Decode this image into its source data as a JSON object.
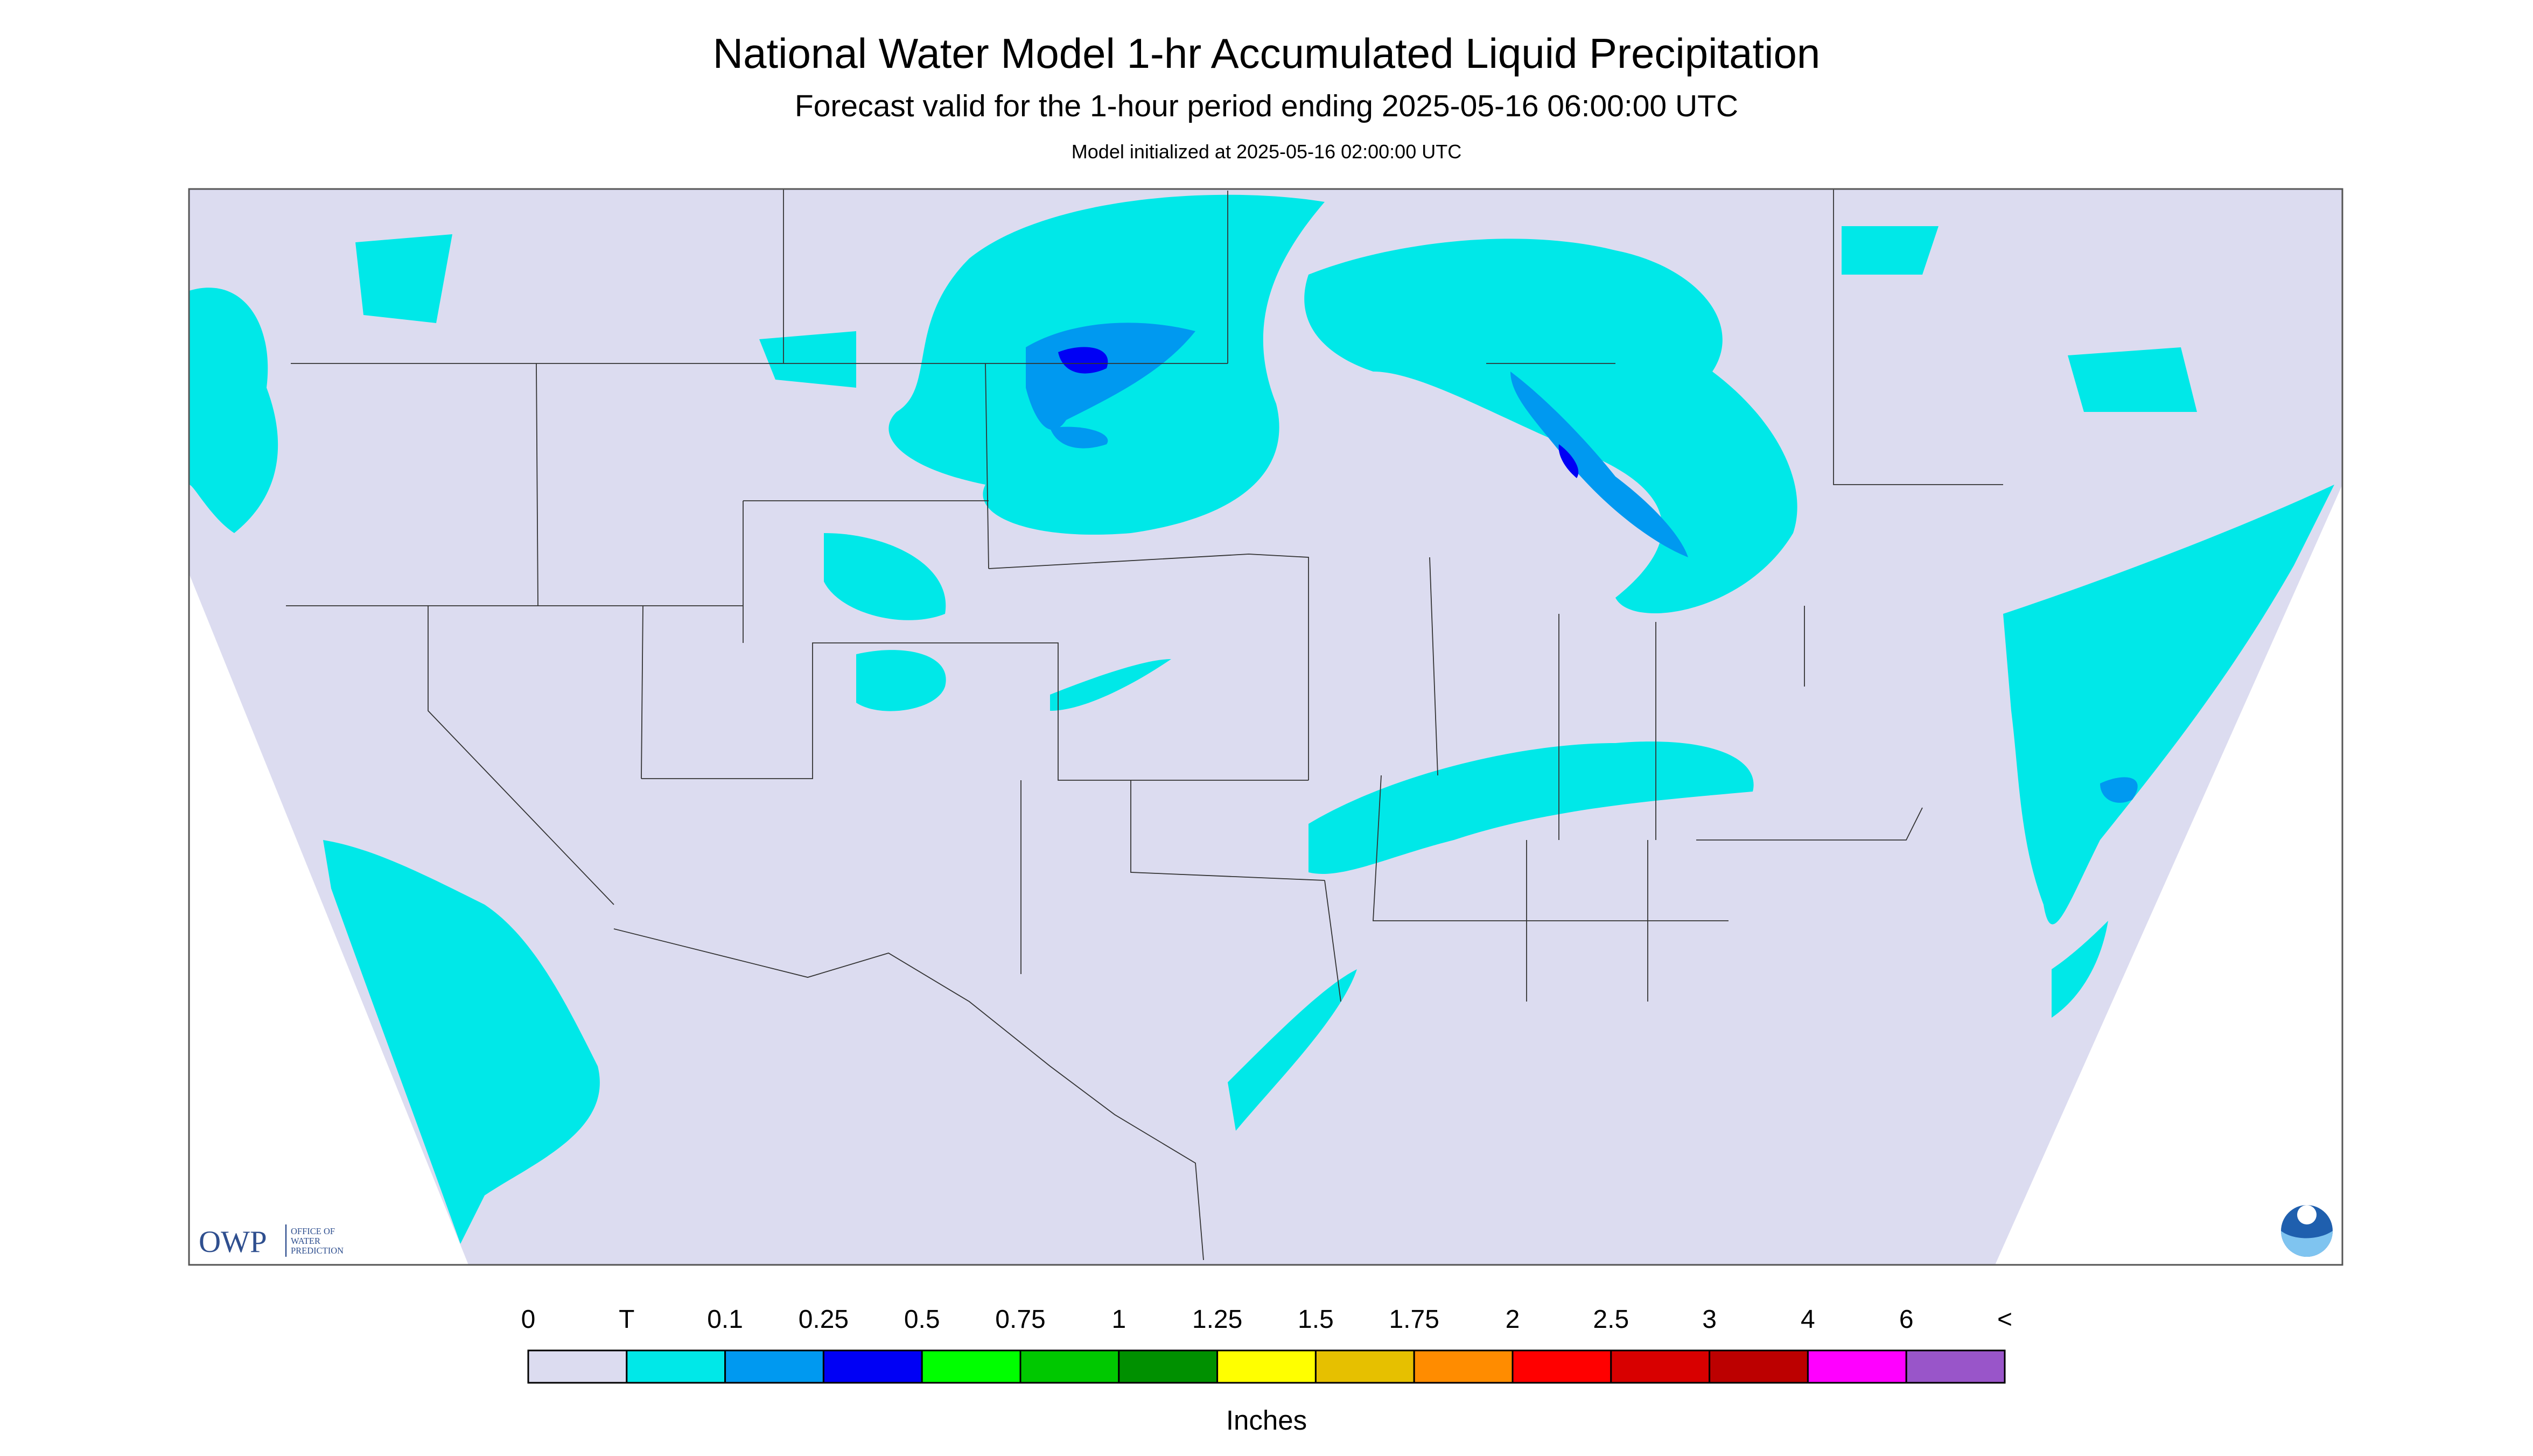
{
  "header": {
    "title": "National Water Model 1-hr Accumulated Liquid Precipitation",
    "subtitle": "Forecast valid for the 1-hour period ending 2025-05-16 06:00:00 UTC",
    "init": "Model initialized at 2025-05-16 02:00:00 UTC"
  },
  "logo": {
    "acronym": "OWP",
    "line1": "OFFICE OF",
    "line2": "WATER",
    "line3": "PREDICTION"
  },
  "legend": {
    "labels": [
      "0",
      "T",
      "0.1",
      "0.25",
      "0.5",
      "0.75",
      "1",
      "1.25",
      "1.5",
      "1.75",
      "2",
      "2.5",
      "3",
      "4",
      "6",
      "<"
    ],
    "colors": [
      "#dcdcf0",
      "#00e8e8",
      "#0099f0",
      "#0000f5",
      "#00ff00",
      "#00c800",
      "#009000",
      "#ffff00",
      "#e6c000",
      "#ff8c00",
      "#ff0000",
      "#d80000",
      "#bc0000",
      "#ff00ff",
      "#9955c9"
    ],
    "unit": "Inches"
  }
}
